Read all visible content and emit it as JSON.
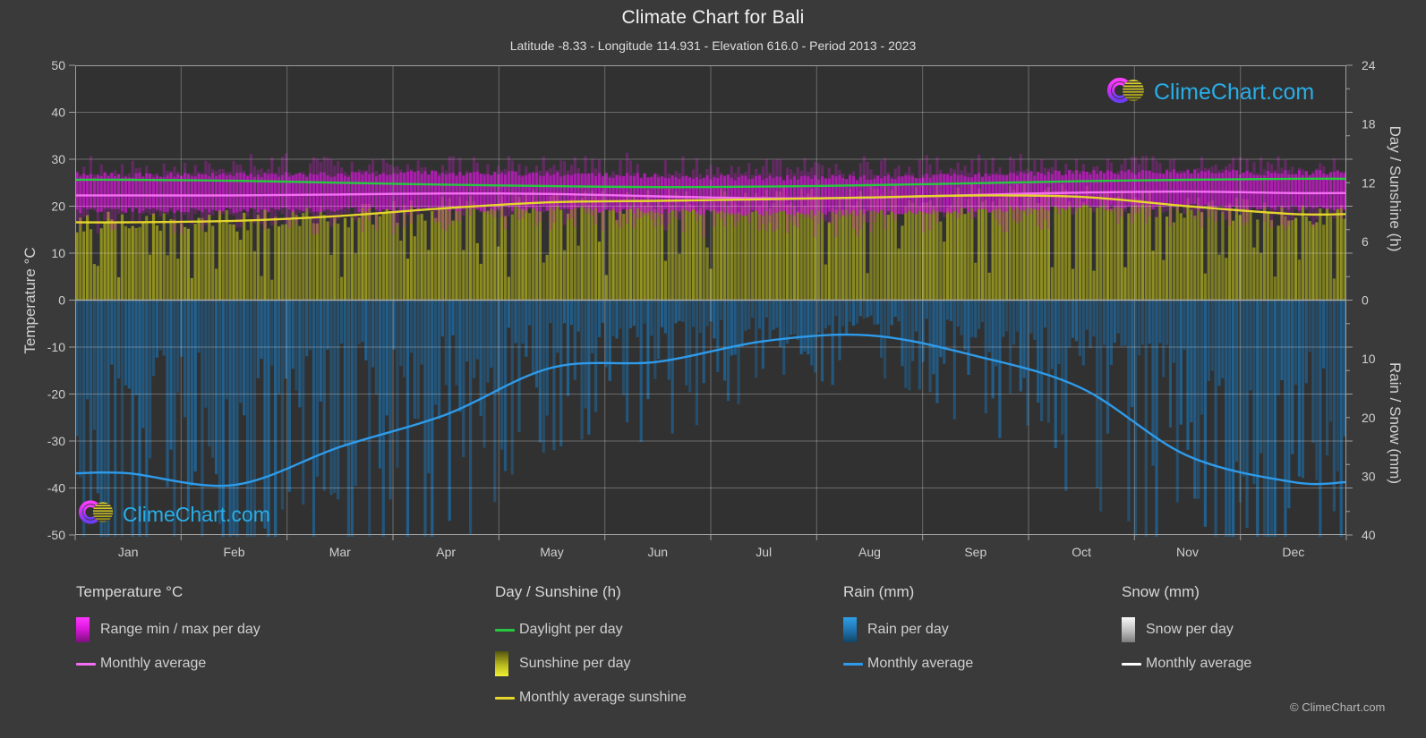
{
  "header": {
    "title": "Climate Chart for Bali",
    "subtitle": "Latitude -8.33 - Longitude 114.931 - Elevation 616.0 - Period 2013 - 2023"
  },
  "watermark": {
    "text": "ClimeChart.com"
  },
  "footer": {
    "copyright": "© ClimeChart.com"
  },
  "axes": {
    "left": {
      "title": "Temperature °C",
      "ticks": [
        50,
        40,
        30,
        20,
        10,
        0,
        -10,
        -20,
        -30,
        -40,
        -50
      ]
    },
    "right_day": {
      "title": "Day / Sunshine (h)",
      "ticks": [
        24,
        18,
        12,
        6,
        0
      ]
    },
    "right_rain": {
      "title": "Rain / Snow (mm)",
      "ticks": [
        10,
        20,
        30,
        40
      ]
    },
    "x": {
      "months": [
        "Jan",
        "Feb",
        "Mar",
        "Apr",
        "May",
        "Jun",
        "Jul",
        "Aug",
        "Sep",
        "Oct",
        "Nov",
        "Dec"
      ]
    }
  },
  "legend": {
    "columns": [
      {
        "header": "Temperature °C",
        "items": [
          {
            "label": "Range min / max per day"
          },
          {
            "label": "Monthly average"
          }
        ]
      },
      {
        "header": "Day / Sunshine (h)",
        "items": [
          {
            "label": "Daylight per day"
          },
          {
            "label": "Sunshine per day"
          },
          {
            "label": "Monthly average sunshine"
          }
        ]
      },
      {
        "header": "Rain (mm)",
        "items": [
          {
            "label": "Rain per day"
          },
          {
            "label": "Monthly average"
          }
        ]
      },
      {
        "header": "Snow (mm)",
        "items": [
          {
            "label": "Snow per day"
          },
          {
            "label": "Monthly average"
          }
        ]
      }
    ]
  },
  "colors": {
    "figure_bg": "#3a3a3a",
    "plot_bg": "#313131",
    "grid": "rgba(255,255,255,0.28)",
    "zero_line": "#a8a8a8",
    "border": "#9f9f9f",
    "tick_text": "#cfcfcf",
    "temp_band": "#cf1ad2",
    "logo_text": "#29aee8"
  },
  "chart_data": {
    "type": "mixed",
    "title": "Climate Chart for Bali",
    "months": [
      "Jan",
      "Feb",
      "Mar",
      "Apr",
      "May",
      "Jun",
      "Jul",
      "Aug",
      "Sep",
      "Oct",
      "Nov",
      "Dec"
    ],
    "y_left": {
      "label": "Temperature °C",
      "range": [
        -50,
        50
      ],
      "grid_step": 10
    },
    "y_right_day": {
      "label": "Day / Sunshine (h)",
      "range": [
        0,
        24
      ],
      "maps_to_temp": [
        0,
        50
      ]
    },
    "y_right_rain": {
      "label": "Rain / Snow (mm)",
      "range": [
        0,
        40
      ],
      "maps_to_temp": [
        0,
        -50
      ],
      "inverted": true
    },
    "legend_position": "bottom",
    "grid": true,
    "series": [
      {
        "name": "Daylight per day",
        "type": "line",
        "unit": "h",
        "color": "#27c840",
        "values": [
          12.3,
          12.2,
          12.0,
          11.8,
          11.65,
          11.55,
          11.6,
          11.75,
          11.95,
          12.15,
          12.3,
          12.4
        ]
      },
      {
        "name": "Monthly average sunshine",
        "type": "line",
        "unit": "h",
        "color": "#e5d52c",
        "values": [
          7.95,
          8.1,
          8.6,
          9.4,
          10.0,
          10.15,
          10.3,
          10.5,
          10.7,
          10.55,
          9.6,
          8.8
        ]
      },
      {
        "name": "Sunshine per day",
        "type": "bar",
        "unit": "h",
        "color": "#94941f",
        "values": [
          7.95,
          8.1,
          8.6,
          9.4,
          10.0,
          10.15,
          10.3,
          10.5,
          10.7,
          10.55,
          9.6,
          8.8
        ]
      },
      {
        "name": "Monthly average temperature",
        "type": "line",
        "unit": "°C",
        "color": "#f36ef3",
        "values": [
          22.3,
          22.3,
          22.5,
          22.7,
          22.6,
          22.1,
          21.7,
          21.8,
          22.4,
          22.9,
          23.1,
          22.8
        ]
      },
      {
        "name": "Temperature range max per day",
        "type": "band-top",
        "unit": "°C",
        "color": "#cf1ad2",
        "values": [
          26.6,
          26.6,
          26.8,
          27.0,
          26.9,
          26.4,
          26.0,
          26.1,
          26.7,
          27.2,
          27.4,
          27.1
        ]
      },
      {
        "name": "Temperature range min per day",
        "type": "band-bottom",
        "unit": "°C",
        "color": "#cf1ad2",
        "values": [
          19.1,
          19.1,
          19.3,
          19.5,
          19.4,
          18.9,
          18.5,
          18.6,
          19.2,
          19.7,
          19.9,
          19.6
        ]
      },
      {
        "name": "Rain per day",
        "type": "bar",
        "unit": "mm",
        "color": "#1d6ca6",
        "values": [
          29.5,
          31.5,
          25.0,
          19.5,
          11.5,
          10.5,
          7.0,
          6.0,
          9.5,
          15.0,
          26.5,
          31.0
        ]
      },
      {
        "name": "Monthly average rain",
        "type": "line",
        "unit": "mm",
        "color": "#2e9bea",
        "values": [
          29.5,
          31.5,
          25.0,
          19.5,
          11.5,
          10.5,
          7.0,
          6.0,
          9.5,
          15.0,
          26.5,
          31.0
        ]
      },
      {
        "name": "Snow per day",
        "type": "bar",
        "unit": "mm",
        "color": "#e8e8e8",
        "values": [
          0,
          0,
          0,
          0,
          0,
          0,
          0,
          0,
          0,
          0,
          0,
          0
        ]
      },
      {
        "name": "Monthly average snow",
        "type": "line",
        "unit": "mm",
        "color": "#ffffff",
        "values": [
          0,
          0,
          0,
          0,
          0,
          0,
          0,
          0,
          0,
          0,
          0,
          0
        ]
      }
    ]
  }
}
